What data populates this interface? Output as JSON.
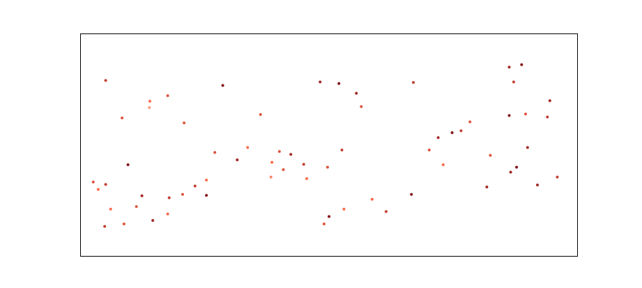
{
  "chart_data": {
    "type": "scatter",
    "title": "",
    "xlabel": "",
    "ylabel": "",
    "axes_visible": false,
    "grid": false,
    "legend": "none",
    "xlim": [
      0,
      100
    ],
    "ylim": [
      0,
      45
    ],
    "colormap": {
      "name": "Reds",
      "low": "#fee5d9",
      "mid": "#fb6a4a",
      "high": "#67000d"
    },
    "series": [
      {
        "points": [
          [
            5,
            35.6,
            0.7
          ],
          [
            8.3,
            28,
            0.6
          ],
          [
            13.9,
            31.4,
            0.5
          ],
          [
            17.5,
            32.5,
            0.6
          ],
          [
            13.8,
            30.1,
            0.3
          ],
          [
            2.5,
            15,
            0.6
          ],
          [
            3.5,
            13.5,
            0.5
          ],
          [
            5,
            14.5,
            0.7
          ],
          [
            9.5,
            18.5,
            0.9
          ],
          [
            12.3,
            12.2,
            0.8
          ],
          [
            20.8,
            27,
            0.6
          ],
          [
            28.6,
            34.6,
            0.9
          ],
          [
            36.2,
            28.7,
            0.6
          ],
          [
            33.6,
            22,
            0.5
          ],
          [
            38.3,
            16,
            0.4
          ],
          [
            40.8,
            17.5,
            0.6
          ],
          [
            48.2,
            35.3,
            0.8
          ],
          [
            52,
            35,
            0.9
          ],
          [
            55.5,
            33,
            0.8
          ],
          [
            56.5,
            30.3,
            0.6
          ],
          [
            67,
            35.2,
            0.7
          ],
          [
            86.3,
            38.3,
            0.8
          ],
          [
            88.8,
            38.8,
            0.9
          ],
          [
            87.2,
            35.3,
            0.7
          ],
          [
            78.4,
            27.2,
            0.6
          ],
          [
            86.3,
            28.5,
            0.9
          ],
          [
            89.6,
            28.8,
            0.6
          ],
          [
            94,
            28.2,
            0.7
          ],
          [
            90,
            22,
            0.8
          ],
          [
            87.8,
            18,
            0.9
          ],
          [
            86.6,
            17,
            0.8
          ],
          [
            82.5,
            20.4,
            0.6
          ],
          [
            81.8,
            14,
            0.8
          ],
          [
            73,
            18.5,
            0.5
          ],
          [
            58.7,
            11.5,
            0.5
          ],
          [
            66.6,
            12.5,
            0.9
          ],
          [
            52.6,
            21.5,
            0.7
          ],
          [
            49.7,
            18,
            0.6
          ],
          [
            45.5,
            15.7,
            0.5
          ],
          [
            44.9,
            18.6,
            0.7
          ],
          [
            42.3,
            20.6,
            0.8
          ],
          [
            40,
            21.2,
            0.6
          ],
          [
            38.5,
            19,
            0.5
          ],
          [
            31.5,
            19.5,
            0.8
          ],
          [
            27,
            21,
            0.6
          ],
          [
            25.3,
            15.4,
            0.5
          ],
          [
            25.3,
            12.3,
            0.9
          ],
          [
            23,
            14.2,
            0.7
          ],
          [
            20.5,
            12.5,
            0.6
          ],
          [
            17.5,
            8.5,
            0.5
          ],
          [
            14.5,
            7.2,
            0.8
          ],
          [
            17.8,
            11.8,
            0.7
          ],
          [
            11.2,
            10,
            0.6
          ],
          [
            6,
            9.5,
            0.5
          ],
          [
            4.8,
            6,
            0.7
          ],
          [
            8.7,
            6.5,
            0.6
          ],
          [
            50,
            8,
            0.9
          ],
          [
            49,
            6.5,
            0.6
          ],
          [
            53,
            9.5,
            0.5
          ],
          [
            61.5,
            9,
            0.7
          ],
          [
            72,
            24,
            0.8
          ],
          [
            74.8,
            25,
            0.9
          ],
          [
            76.6,
            25.4,
            0.7
          ],
          [
            70.2,
            21.5,
            0.6
          ],
          [
            96,
            16,
            0.7
          ],
          [
            92,
            14.4,
            0.8
          ],
          [
            94.5,
            31.5,
            0.8
          ]
        ]
      }
    ]
  }
}
